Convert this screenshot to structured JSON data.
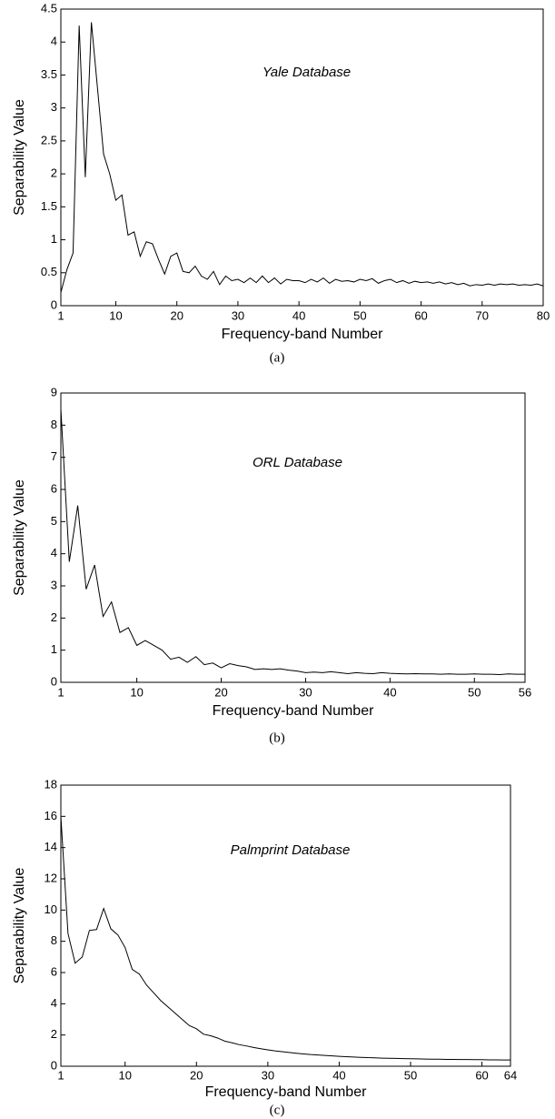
{
  "chart_data": [
    {
      "type": "line",
      "annotation": "Yale Database",
      "x_label": "Frequency-band Number",
      "y_label": "Separability Value",
      "caption": "(a)",
      "color": "#000000",
      "x": [
        1,
        2,
        3,
        4,
        5,
        6,
        7,
        8,
        9,
        10,
        11,
        12,
        13,
        14,
        15,
        16,
        17,
        18,
        19,
        20,
        21,
        22,
        23,
        24,
        25,
        26,
        27,
        28,
        29,
        30,
        31,
        32,
        33,
        34,
        35,
        36,
        37,
        38,
        39,
        40,
        41,
        42,
        43,
        44,
        45,
        46,
        47,
        48,
        49,
        50,
        51,
        52,
        53,
        54,
        55,
        56,
        57,
        58,
        59,
        60,
        61,
        62,
        63,
        64,
        65,
        66,
        67,
        68,
        69,
        70,
        71,
        72,
        73,
        74,
        75,
        76,
        77,
        78,
        79,
        80
      ],
      "values": [
        0.2,
        0.55,
        0.8,
        4.25,
        1.95,
        4.3,
        3.3,
        2.3,
        2.0,
        1.6,
        1.68,
        1.07,
        1.12,
        0.75,
        0.97,
        0.94,
        0.7,
        0.48,
        0.75,
        0.8,
        0.52,
        0.5,
        0.6,
        0.45,
        0.4,
        0.52,
        0.32,
        0.45,
        0.38,
        0.4,
        0.35,
        0.42,
        0.35,
        0.45,
        0.35,
        0.42,
        0.33,
        0.4,
        0.38,
        0.38,
        0.35,
        0.4,
        0.36,
        0.42,
        0.34,
        0.4,
        0.37,
        0.38,
        0.36,
        0.4,
        0.38,
        0.41,
        0.34,
        0.38,
        0.4,
        0.35,
        0.38,
        0.34,
        0.37,
        0.35,
        0.36,
        0.34,
        0.36,
        0.33,
        0.35,
        0.32,
        0.34,
        0.3,
        0.32,
        0.31,
        0.33,
        0.31,
        0.33,
        0.32,
        0.33,
        0.31,
        0.32,
        0.31,
        0.33,
        0.3
      ],
      "xlim": [
        1,
        80
      ],
      "xticks": [
        1,
        10,
        20,
        30,
        40,
        50,
        60,
        70,
        80
      ],
      "ylim": [
        0,
        4.5
      ],
      "yticks": [
        0,
        0.5,
        1,
        1.5,
        2,
        2.5,
        3,
        3.5,
        4,
        4.5
      ]
    },
    {
      "type": "line",
      "annotation": "ORL Database",
      "x_label": "Frequency-band Number",
      "y_label": "Separability Value",
      "caption": "(b)",
      "color": "#000000",
      "x": [
        1,
        2,
        3,
        4,
        5,
        6,
        7,
        8,
        9,
        10,
        11,
        12,
        13,
        14,
        15,
        16,
        17,
        18,
        19,
        20,
        21,
        22,
        23,
        24,
        25,
        26,
        27,
        28,
        29,
        30,
        31,
        32,
        33,
        34,
        35,
        36,
        37,
        38,
        39,
        40,
        41,
        42,
        43,
        44,
        45,
        46,
        47,
        48,
        49,
        50,
        51,
        52,
        53,
        54,
        55,
        56
      ],
      "values": [
        8.5,
        3.75,
        5.5,
        2.9,
        3.65,
        2.05,
        2.5,
        1.55,
        1.7,
        1.15,
        1.3,
        1.15,
        1.0,
        0.72,
        0.78,
        0.62,
        0.8,
        0.55,
        0.6,
        0.45,
        0.58,
        0.52,
        0.48,
        0.4,
        0.42,
        0.4,
        0.42,
        0.38,
        0.35,
        0.3,
        0.32,
        0.3,
        0.33,
        0.3,
        0.27,
        0.3,
        0.28,
        0.27,
        0.3,
        0.28,
        0.27,
        0.26,
        0.27,
        0.26,
        0.26,
        0.25,
        0.26,
        0.25,
        0.25,
        0.26,
        0.25,
        0.25,
        0.24,
        0.26,
        0.25,
        0.25
      ],
      "xlim": [
        1,
        56
      ],
      "xticks": [
        1,
        10,
        20,
        30,
        40,
        50,
        56
      ],
      "ylim": [
        0,
        9
      ],
      "yticks": [
        0,
        1,
        2,
        3,
        4,
        5,
        6,
        7,
        8,
        9
      ]
    },
    {
      "type": "line",
      "annotation": "Palmprint Database",
      "x_label": "Frequency-band Number",
      "y_label": "Separability Value",
      "caption": "(c)",
      "color": "#000000",
      "x": [
        1,
        2,
        3,
        4,
        5,
        6,
        7,
        8,
        9,
        10,
        11,
        12,
        13,
        14,
        15,
        16,
        17,
        18,
        19,
        20,
        21,
        22,
        23,
        24,
        25,
        26,
        27,
        28,
        29,
        30,
        31,
        32,
        33,
        34,
        35,
        36,
        37,
        38,
        39,
        40,
        41,
        42,
        43,
        44,
        45,
        46,
        47,
        48,
        49,
        50,
        51,
        52,
        53,
        54,
        55,
        56,
        57,
        58,
        59,
        60,
        61,
        62,
        63,
        64
      ],
      "values": [
        16,
        8.5,
        6.6,
        7.0,
        8.7,
        8.75,
        10.1,
        8.8,
        8.4,
        7.6,
        6.2,
        5.9,
        5.2,
        4.7,
        4.2,
        3.8,
        3.4,
        3.0,
        2.6,
        2.4,
        2.05,
        1.95,
        1.8,
        1.6,
        1.5,
        1.38,
        1.3,
        1.2,
        1.12,
        1.05,
        0.98,
        0.93,
        0.88,
        0.83,
        0.79,
        0.75,
        0.72,
        0.69,
        0.66,
        0.63,
        0.61,
        0.59,
        0.57,
        0.55,
        0.54,
        0.52,
        0.51,
        0.5,
        0.49,
        0.48,
        0.47,
        0.46,
        0.45,
        0.45,
        0.44,
        0.44,
        0.43,
        0.43,
        0.42,
        0.42,
        0.41,
        0.41,
        0.4,
        0.4
      ],
      "xlim": [
        1,
        64
      ],
      "xticks": [
        1,
        10,
        20,
        30,
        40,
        50,
        60,
        64
      ],
      "ylim": [
        0,
        18
      ],
      "yticks": [
        0,
        2,
        4,
        6,
        8,
        10,
        12,
        14,
        16,
        18
      ]
    }
  ]
}
